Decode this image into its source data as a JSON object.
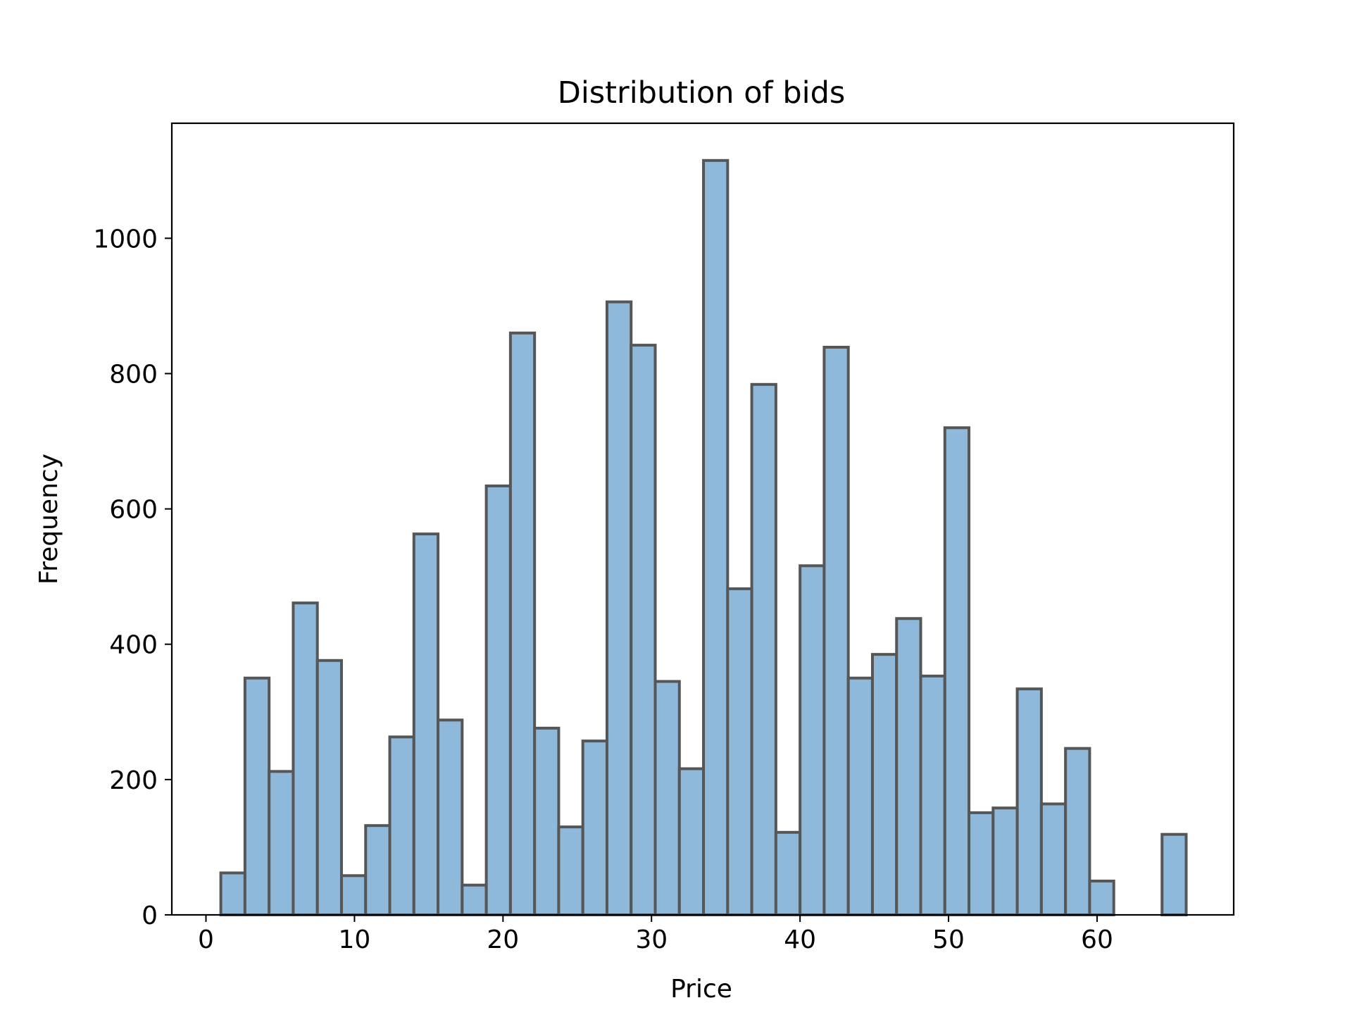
{
  "chart_data": {
    "type": "bar",
    "title": "Distribution of bids",
    "xlabel": "Price",
    "ylabel": "Frequency",
    "xlim": [
      -2.3,
      69.2
    ],
    "ylim": [
      0,
      1170
    ],
    "x_ticks": [
      0,
      10,
      20,
      30,
      40,
      50,
      60
    ],
    "y_ticks": [
      0,
      200,
      400,
      600,
      800,
      1000
    ],
    "grid": false,
    "legend": "none",
    "bin_edges": [
      1.0,
      2.625,
      4.25,
      5.875,
      7.5,
      9.125,
      10.75,
      12.375,
      14.0,
      15.625,
      17.25,
      18.875,
      20.5,
      22.125,
      23.75,
      25.375,
      27.0,
      28.625,
      30.25,
      31.875,
      33.5,
      35.125,
      36.75,
      38.375,
      40.0,
      41.625,
      43.25,
      44.875,
      46.5,
      48.125,
      49.75,
      51.375,
      53.0,
      54.625,
      56.25,
      57.875,
      59.5,
      61.125,
      62.75,
      64.375,
      66.0
    ],
    "values": [
      62,
      350,
      212,
      461,
      376,
      58,
      132,
      263,
      563,
      288,
      44,
      634,
      860,
      276,
      130,
      257,
      906,
      842,
      345,
      216,
      1115,
      482,
      784,
      122,
      516,
      839,
      350,
      385,
      438,
      353,
      720,
      151,
      158,
      334,
      164,
      246,
      50,
      0,
      0,
      119
    ],
    "colors": {
      "bar_fill": "#8fb9da",
      "bar_edge": "#565656",
      "axis": "#000000"
    }
  }
}
